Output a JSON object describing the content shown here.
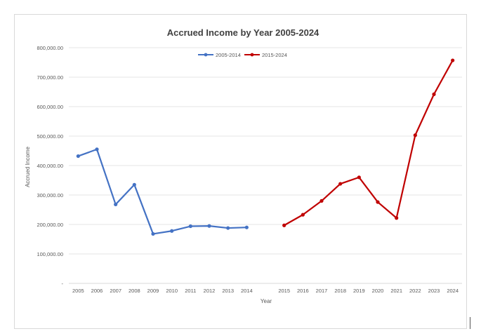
{
  "chart_data": {
    "type": "line",
    "title": "Accrued Income by Year 2005-2024",
    "xlabel": "Year",
    "ylabel": "Accrued Income",
    "ylim": [
      0,
      800000
    ],
    "y_ticks": [
      "-",
      "100,000.00",
      "200,000.00",
      "300,000.00",
      "400,000.00",
      "500,000.00",
      "600,000.00",
      "700,000.00",
      "800,000.00"
    ],
    "categories": [
      "2005",
      "2006",
      "2007",
      "2008",
      "2009",
      "2010",
      "2011",
      "2012",
      "2013",
      "2014",
      "",
      "2015",
      "2016",
      "2017",
      "2018",
      "2019",
      "2020",
      "2021",
      "2022",
      "2023",
      "2024"
    ],
    "grid": true,
    "legend": "top",
    "series": [
      {
        "name": "2005-2014",
        "color": "#4472c4",
        "x": [
          "2005",
          "2006",
          "2007",
          "2008",
          "2009",
          "2010",
          "2011",
          "2012",
          "2013",
          "2014"
        ],
        "values": [
          432000,
          455000,
          268000,
          335000,
          168000,
          178000,
          194000,
          195000,
          188000,
          190000
        ]
      },
      {
        "name": "2015-2024",
        "color": "#c00000",
        "x": [
          "2015",
          "2016",
          "2017",
          "2018",
          "2019",
          "2020",
          "2021",
          "2022",
          "2023",
          "2024"
        ],
        "values": [
          197000,
          233000,
          280000,
          338000,
          360000,
          276000,
          222000,
          503000,
          642000,
          757000
        ]
      }
    ]
  }
}
